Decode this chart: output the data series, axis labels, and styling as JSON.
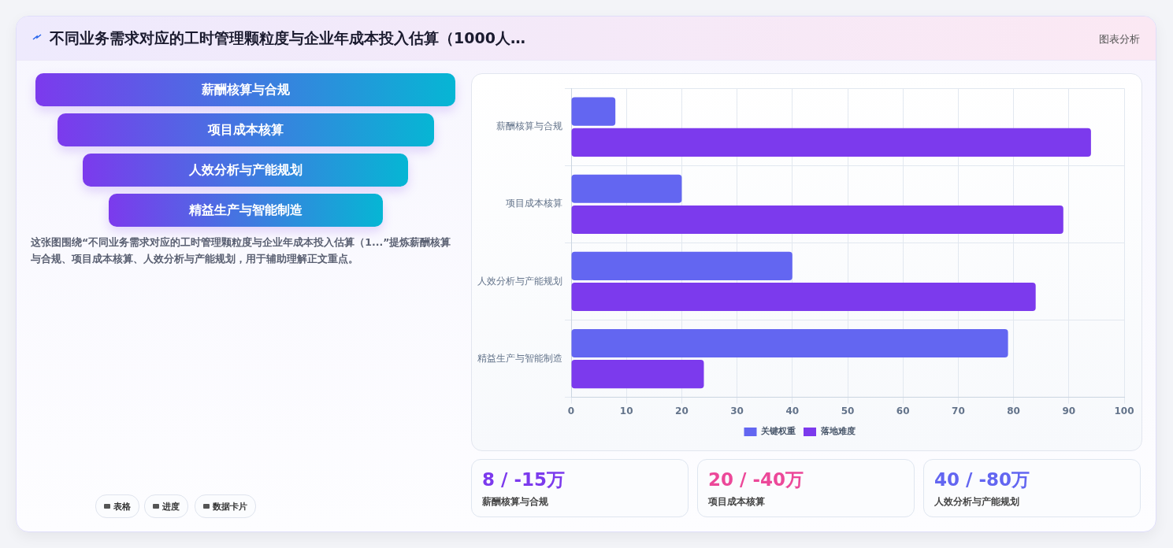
{
  "chart_data": {
    "type": "bar",
    "orientation": "horizontal",
    "title": "不同业务需求对应的工时管理颗粒度与企业年成本投入估算（1000人…",
    "categories": [
      "薪酬核算与合规",
      "项目成本核算",
      "人效分析与产能规划",
      "精益生产与智能制造"
    ],
    "series": [
      {
        "name": "关键权重",
        "color": "#6366f1",
        "values": [
          8,
          20,
          40,
          79
        ]
      },
      {
        "name": "落地难度",
        "color": "#7c3aed",
        "values": [
          94,
          89,
          84,
          24
        ]
      }
    ],
    "xlim": [
      0,
      100
    ],
    "xticks": [
      0,
      10,
      20,
      30,
      40,
      50,
      60,
      70,
      80,
      90,
      100
    ],
    "grid": true,
    "legend": "bottom",
    "annotations": [
      "图表分析",
      "薪酬核算与合规",
      "项目成本核算",
      "人效分析与产能规划",
      "精益生产与智能制造",
      "这张图围绕“不同业务需求对应的工时管理颗粒度与企业年成本投入估算（1...”提炼薪酬核算与合规、项目成本核算、人效分析与产能规划，用于辅助理解正文重点。",
      "8 / -15万",
      "薪酬核算与合规",
      "20 / -40万",
      "项目成本核算",
      "40 / -80万",
      "人效分析与产能规划",
      "表格",
      "进度",
      "数据卡片"
    ]
  }
}
